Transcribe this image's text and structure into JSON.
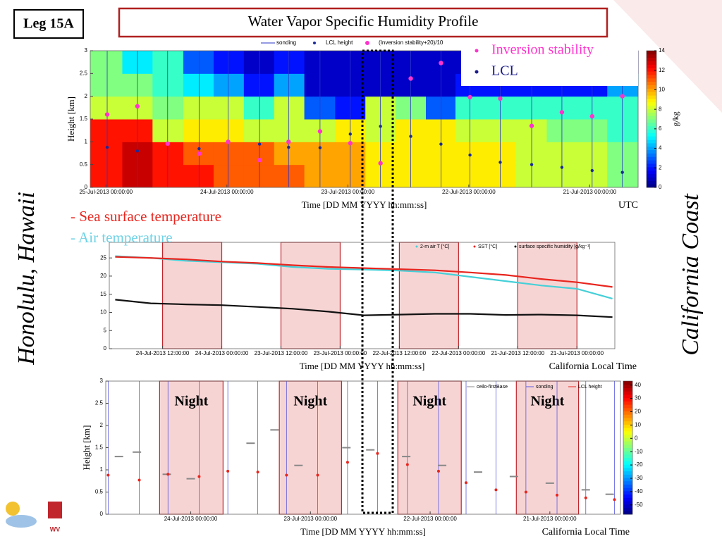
{
  "slide": {
    "badge": "Leg 15A",
    "title": "Water Vapor Specific Humidity Profile",
    "left_caption": "Honolulu, Hawaii",
    "right_caption": "California Coast",
    "logo_text": "WV"
  },
  "chart_data": [
    {
      "type": "heatmap",
      "xlabel": "Time  [DD MM YYYY hh:mm:ss]",
      "ylabel": "Height  [km]",
      "time_zone": "UTC",
      "xlim": [
        25.13,
        20.6
      ],
      "xticks": [
        {
          "value": 25,
          "label": "25-Jul-2013 00:00:00"
        },
        {
          "value": 24,
          "label": "24-Jul-2013 00:00:00"
        },
        {
          "value": 23,
          "label": "23-Jul-2013 00:00:00"
        },
        {
          "value": 22,
          "label": "22-Jul-2013 00:00:00"
        },
        {
          "value": 21,
          "label": "21-Jul-2013 00:00:00"
        }
      ],
      "ylim": [
        0,
        3
      ],
      "yticks": [
        0,
        0.5,
        1,
        1.5,
        2,
        2.5,
        3
      ],
      "heatmap": {
        "x": [
          24.99,
          24.74,
          24.49,
          24.23,
          23.99,
          23.73,
          23.49,
          23.23,
          22.98,
          22.73,
          22.48,
          22.23,
          21.99,
          21.74,
          21.48,
          21.23,
          20.98,
          20.73
        ],
        "ybins": [
          0,
          0.5,
          1,
          1.5,
          2,
          2.5,
          3
        ],
        "z": [
          [
            12,
            12,
            12,
            8,
            7,
            7
          ],
          [
            13,
            13,
            12,
            8,
            7,
            5
          ],
          [
            12,
            12,
            8,
            7,
            6,
            6
          ],
          [
            12,
            11,
            9,
            8,
            5,
            3
          ],
          [
            11,
            11,
            9,
            8,
            4,
            2
          ],
          [
            11,
            11,
            8,
            6,
            2,
            1
          ],
          [
            11,
            10,
            8,
            8,
            4,
            2
          ],
          [
            10,
            10,
            8,
            3,
            1,
            1
          ],
          [
            10,
            10,
            9,
            2,
            1,
            1
          ],
          [
            9,
            9,
            8,
            8,
            1,
            1
          ],
          [
            9,
            9,
            9,
            7,
            1,
            1
          ],
          [
            9,
            9,
            9,
            3,
            1,
            1
          ],
          [
            9,
            9,
            8,
            6,
            2,
            1
          ],
          [
            9,
            9,
            8,
            6,
            2,
            1
          ],
          [
            8,
            8,
            8,
            6,
            2,
            1
          ],
          [
            8,
            8,
            7,
            6,
            2,
            1
          ],
          [
            8,
            8,
            7,
            6,
            2,
            1
          ],
          [
            7,
            7,
            6,
            6,
            4,
            1
          ]
        ],
        "zlim": [
          0,
          14
        ],
        "zticks": [
          0,
          2,
          4,
          6,
          8,
          10,
          12,
          14
        ],
        "zlabel": "g/kg",
        "colormap": "jet"
      },
      "series": [
        {
          "name": "sonding",
          "color": "#2b36c8",
          "x": [
            24.99,
            24.74,
            24.49,
            24.23,
            23.99,
            23.73,
            23.49,
            23.23,
            22.98,
            22.73,
            22.48,
            22.23,
            21.99,
            21.74,
            21.48,
            21.23,
            20.98,
            20.73
          ]
        },
        {
          "name": "LCL height",
          "color": "#1a2a9c",
          "x": [
            24.99,
            24.74,
            24.49,
            24.23,
            23.99,
            23.73,
            23.49,
            23.23,
            22.98,
            22.73,
            22.48,
            22.23,
            21.99,
            21.74,
            21.48,
            21.23,
            20.98,
            20.73
          ],
          "values": [
            0.88,
            0.8,
            0.95,
            0.85,
            0.99,
            0.95,
            0.88,
            0.87,
            1.17,
            1.34,
            1.12,
            0.95,
            0.71,
            0.55,
            0.5,
            0.44,
            0.37,
            0.33
          ]
        },
        {
          "name": "(Inversion stability+20)/10",
          "color": "#ff33cc",
          "x": [
            24.99,
            24.74,
            24.49,
            24.23,
            23.99,
            23.73,
            23.49,
            23.23,
            22.98,
            22.73,
            22.48,
            22.23,
            21.99,
            21.74,
            21.48,
            21.23,
            20.98,
            20.73
          ],
          "values": [
            1.6,
            1.78,
            0.96,
            0.74,
            1.0,
            0.6,
            1.0,
            1.23,
            0.97,
            0.53,
            2.39,
            2.73,
            1.98,
            1.95,
            1.35,
            1.65,
            1.56,
            2.0
          ]
        }
      ],
      "annotations": [
        {
          "text": "Inversion stability",
          "color": "#ff33cc"
        },
        {
          "text": "LCL",
          "color": "#1a1a8c"
        }
      ]
    },
    {
      "type": "line",
      "xlabel": "Time  [DD MM YYYY hh:mm:ss]",
      "time_zone": "California Local Time",
      "xlim": [
        24.95,
        20.68
      ],
      "xticks": [
        {
          "value": 24.5,
          "label": "24-Jul-2013 12:00:00"
        },
        {
          "value": 24,
          "label": "24-Jul-2013 00:00:00"
        },
        {
          "value": 23.5,
          "label": "23-Jul-2013 12:00:00"
        },
        {
          "value": 23,
          "label": "23-Jul-2013 00:00:00"
        },
        {
          "value": 22.5,
          "label": "22-Jul-2013 12:00:00"
        },
        {
          "value": 22,
          "label": "22-Jul-2013 00:00:00"
        },
        {
          "value": 21.5,
          "label": "21-Jul-2013 12:00:00"
        },
        {
          "value": 21,
          "label": "21-Jul-2013 00:00:00"
        }
      ],
      "ylim": [
        0,
        29.3
      ],
      "yticks": [
        0,
        5,
        10,
        15,
        20,
        25
      ],
      "night_spans": [
        [
          24.5,
          24.0
        ],
        [
          23.5,
          23.0
        ],
        [
          22.5,
          22.0
        ],
        [
          21.5,
          21.0
        ]
      ],
      "x": [
        24.9,
        24.6,
        24.3,
        24.0,
        23.7,
        23.4,
        23.1,
        22.8,
        22.5,
        22.2,
        21.9,
        21.6,
        21.3,
        21.0,
        20.7
      ],
      "series": [
        {
          "name": "2-m air T [°C]",
          "color": "#45d0d8",
          "values": [
            25.5,
            25.0,
            24.2,
            23.8,
            23.4,
            22.5,
            22.0,
            21.8,
            21.5,
            21.0,
            19.8,
            18.6,
            17.4,
            16.5,
            13.8
          ]
        },
        {
          "name": "SST [°C]",
          "color": "#e8251e",
          "values": [
            25.3,
            25.0,
            24.6,
            24.0,
            23.6,
            23.0,
            22.5,
            22.2,
            21.9,
            21.6,
            21.0,
            20.3,
            19.2,
            18.3,
            17.0
          ]
        },
        {
          "name": "surface specific humidity [g/kg⁻¹]",
          "color": "#111111",
          "values": [
            13.5,
            12.5,
            12.2,
            12.0,
            11.5,
            11.0,
            10.2,
            9.2,
            9.4,
            9.6,
            9.6,
            9.3,
            9.4,
            9.2,
            8.7
          ]
        }
      ],
      "annotations": [
        {
          "text": "- Sea surface temperature",
          "color": "#e8251e"
        },
        {
          "text": "- Air temperature",
          "color": "#6fd3e6"
        }
      ]
    },
    {
      "type": "scatter",
      "xlabel": "Time  [DD MM YYYY hh:mm:ss]",
      "ylabel": "Height  [km]",
      "time_zone": "California Local Time",
      "xlim": [
        24.71,
        20.41
      ],
      "xticks": [
        {
          "value": 24,
          "label": "24-Jul-2013 00:00:00"
        },
        {
          "value": 23,
          "label": "23-Jul-2013 00:00:00"
        },
        {
          "value": 22,
          "label": "22-Jul-2013 00:00:00"
        },
        {
          "value": 21,
          "label": "21-Jul-2013 00:00:00"
        }
      ],
      "ylim": [
        0,
        3
      ],
      "yticks": [
        0,
        0.5,
        1,
        1.5,
        2,
        2.5,
        3
      ],
      "night_spans": [
        [
          24.26,
          23.73
        ],
        [
          23.26,
          22.74
        ],
        [
          22.27,
          21.74
        ],
        [
          21.28,
          20.76
        ]
      ],
      "night_label": "Night",
      "colorbar": {
        "zlim": [
          -57,
          43
        ],
        "zticks": [
          40,
          30,
          20,
          10,
          0,
          -10,
          -20,
          -30,
          -40,
          -50
        ],
        "colormap": "jet"
      },
      "series": [
        {
          "name": "ceilo-firstBase",
          "color": "#888888",
          "x": [
            24.6,
            24.45,
            24.2,
            24.0,
            23.5,
            23.3,
            23.1,
            22.7,
            22.5,
            22.2,
            21.9,
            21.6,
            21.3,
            21.0,
            20.7,
            20.5
          ],
          "values": [
            1.3,
            1.4,
            0.9,
            0.8,
            1.6,
            1.9,
            1.1,
            1.5,
            1.45,
            1.3,
            1.1,
            0.95,
            0.85,
            0.7,
            0.55,
            0.45
          ]
        },
        {
          "name": "sonding",
          "color": "#5a5ae0",
          "x": [
            24.69,
            24.43,
            24.19,
            23.93,
            23.69,
            23.44,
            23.2,
            22.94,
            22.69,
            22.44,
            22.19,
            21.93,
            21.7,
            21.45,
            21.2,
            20.94,
            20.7,
            20.46
          ]
        },
        {
          "name": "LCL height",
          "color": "#e8251e",
          "x": [
            24.69,
            24.43,
            24.19,
            23.93,
            23.69,
            23.44,
            23.2,
            22.94,
            22.69,
            22.44,
            22.19,
            21.93,
            21.7,
            21.45,
            21.2,
            20.94,
            20.7,
            20.46
          ],
          "values": [
            0.88,
            0.77,
            0.9,
            0.85,
            0.97,
            0.95,
            0.88,
            0.88,
            1.17,
            1.37,
            1.12,
            0.97,
            0.71,
            0.55,
            0.5,
            0.43,
            0.37,
            0.33
          ]
        }
      ]
    }
  ]
}
